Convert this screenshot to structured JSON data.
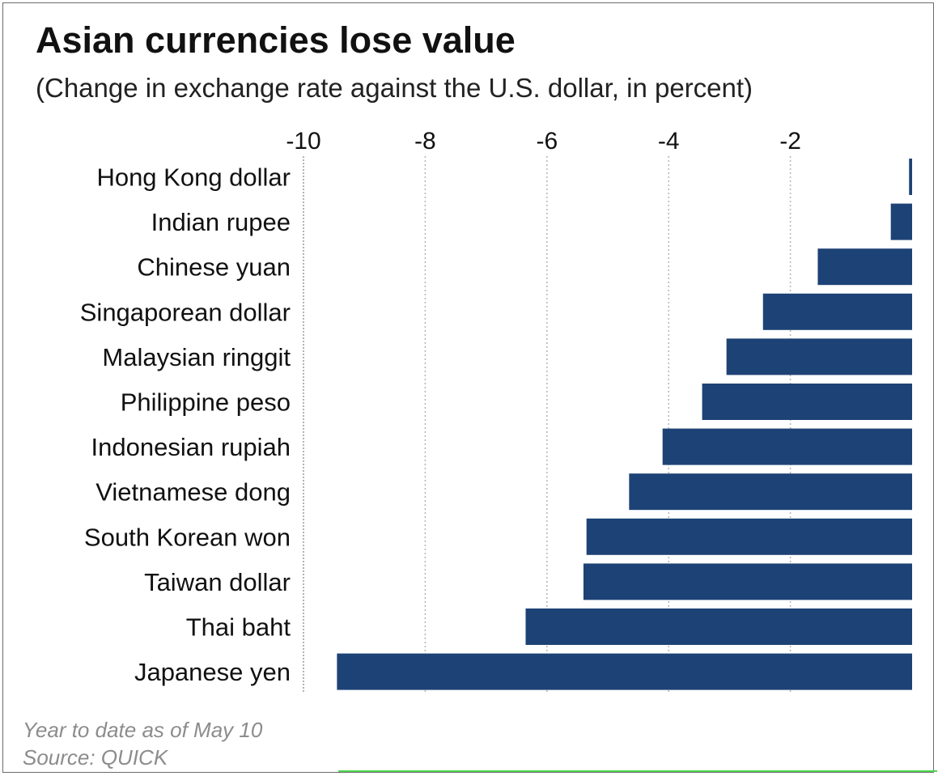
{
  "chart_data": {
    "type": "bar",
    "orientation": "horizontal",
    "title": "Asian currencies lose value",
    "subtitle": "(Change in exchange rate against the U.S. dollar, in percent)",
    "xlabel": "",
    "ylabel": "",
    "xlim": [
      -10,
      0
    ],
    "ticks": [
      -10,
      -8,
      -6,
      -4,
      -2
    ],
    "tick_labels": [
      "-10",
      "-8",
      "-6",
      "-4",
      "-2"
    ],
    "grid": true,
    "categories": [
      "Hong Kong dollar",
      "Indian rupee",
      "Chinese yuan",
      "Singaporean dollar",
      "Malaysian ringgit",
      "Philippine peso",
      "Indonesian rupiah",
      "Vietnamese dong",
      "South Korean won",
      "Taiwan dollar",
      "Thai baht",
      "Japanese yen"
    ],
    "values": [
      -0.05,
      -0.35,
      -1.55,
      -2.45,
      -3.05,
      -3.45,
      -4.1,
      -4.65,
      -5.35,
      -5.4,
      -6.35,
      -9.45
    ],
    "bar_color": "#1d4275",
    "grid_color": "#b5b5b5"
  },
  "footnotes": {
    "line1": "Year to date as of May 10",
    "line2": "Source: QUICK"
  },
  "colors": {
    "footnote": "#8c8c8c",
    "accent_rule": "#4cd64c"
  }
}
